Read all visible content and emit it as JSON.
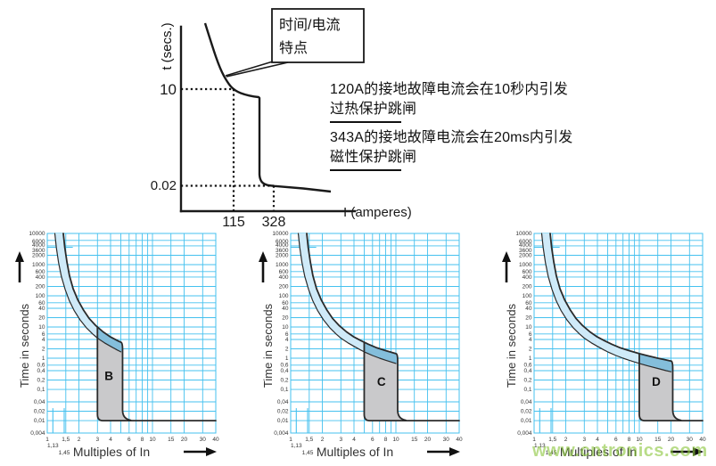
{
  "top_diagram": {
    "callout_line1": "时间/电流",
    "callout_line2": "特点",
    "y_axis_label": "t (secs.)",
    "y_tick_10": "10",
    "y_tick_002": "0.02",
    "x_tick_115": "115",
    "x_tick_328": "328",
    "x_axis_label": "I (amperes)",
    "note1_line1": "120A的接地故障电流会在10秒内引发",
    "note1_line2": "过热保护跳闸",
    "note2_line1": "343A的接地故障电流会在20ms内引发",
    "note2_line2": "磁性保护跳闸"
  },
  "watermark": "www.cntronics.com",
  "colors": {
    "grid": "#45c1ef",
    "thermal_band_fill": "#cfeaf8",
    "overlap_fill": "#84bedb",
    "magnetic_band_fill": "#c9c9cb",
    "curve_stroke": "#2b2b2b",
    "watermark_green": "#8dc63f"
  },
  "thermal_band_curves": {
    "fast_boundary_x_t": [
      [
        1.18,
        10000
      ],
      [
        1.22,
        3500
      ],
      [
        1.28,
        1200
      ],
      [
        1.36,
        420
      ],
      [
        1.48,
        160
      ],
      [
        1.62,
        70
      ],
      [
        1.8,
        34
      ],
      [
        2.05,
        17
      ],
      [
        2.35,
        9.5
      ],
      [
        2.7,
        6
      ],
      [
        3,
        4.4
      ],
      [
        3.5,
        3.1
      ],
      [
        4,
        2.4
      ],
      [
        4.6,
        1.85
      ],
      [
        5,
        1.6
      ],
      [
        6,
        1.22
      ],
      [
        7,
        1.0
      ],
      [
        8,
        0.86
      ],
      [
        10,
        0.68
      ],
      [
        12,
        0.57
      ],
      [
        15,
        0.47
      ],
      [
        18,
        0.4
      ],
      [
        20,
        0.37
      ],
      [
        22,
        0.34
      ]
    ],
    "slow_boundary_x_t": [
      [
        1.42,
        10000
      ],
      [
        1.47,
        3500
      ],
      [
        1.54,
        1200
      ],
      [
        1.63,
        430
      ],
      [
        1.76,
        170
      ],
      [
        1.95,
        75
      ],
      [
        2.2,
        36
      ],
      [
        2.5,
        19
      ],
      [
        2.9,
        11
      ],
      [
        3.4,
        7
      ],
      [
        4,
        4.8
      ],
      [
        4.7,
        3.6
      ],
      [
        5.5,
        2.8
      ],
      [
        6.5,
        2.2
      ],
      [
        8,
        1.75
      ],
      [
        10,
        1.4
      ],
      [
        12,
        1.2
      ],
      [
        15,
        1.0
      ],
      [
        18,
        0.88
      ],
      [
        22,
        0.76
      ],
      [
        26,
        0.68
      ]
    ],
    "instantaneous_trip_seconds": 0.01
  },
  "chart_common": {
    "x_gridline_values": [
      1,
      1.5,
      2,
      3,
      4,
      5,
      6,
      7,
      8,
      9,
      10,
      15,
      20,
      30,
      40
    ],
    "x_tick_values": [
      1,
      1.5,
      2,
      3,
      4,
      6,
      8,
      10,
      15,
      20,
      30,
      40
    ],
    "x_tick_labels": [
      "1",
      "1,5",
      "2",
      "3",
      "4",
      "6",
      "8",
      "10",
      "15",
      "20",
      "30",
      "40"
    ],
    "x_sub_ticks": [
      {
        "label": "1,13",
        "value": 1.13
      },
      {
        "label": "1,45",
        "value": 1.45
      }
    ],
    "y_tick_values": [
      10000,
      6000,
      4000,
      3600,
      2000,
      1000,
      600,
      400,
      200,
      100,
      60,
      40,
      20,
      10,
      6,
      4,
      2,
      1,
      0.6,
      0.4,
      0.2,
      0.1,
      0.04,
      0.02,
      0.01,
      0.004
    ],
    "y_tick_labels": [
      "10000",
      "6000",
      "4000",
      "3600",
      "2000",
      "1000",
      "600",
      "400",
      "200",
      "100",
      "60",
      "40",
      "20",
      "10",
      "6",
      "4",
      "2",
      "1",
      "0,6",
      "0,4",
      "0,2",
      "0,1",
      "0,04",
      "0,02",
      "0,01",
      "0,004"
    ],
    "partial_gridline_value": 3600,
    "partial_gridline_x_end": 1.75
  },
  "chart_data": [
    {
      "type": "area",
      "curve_label": "B",
      "magnetic_trip_range_multiples_of_in": [
        3,
        5
      ],
      "label_pos": [
        3.85,
        0.2
      ],
      "xlabel": "Multiples of In",
      "ylabel": "Time in seconds",
      "xlim": [
        1,
        40
      ],
      "ylim": [
        0.004,
        10000
      ]
    },
    {
      "type": "area",
      "curve_label": "C",
      "magnetic_trip_range_multiples_of_in": [
        5,
        10
      ],
      "label_pos": [
        7.3,
        0.13
      ],
      "xlabel": "Multiples of In",
      "ylabel": "Time in seconds",
      "xlim": [
        1,
        40
      ],
      "ylim": [
        0.004,
        10000
      ]
    },
    {
      "type": "area",
      "curve_label": "D",
      "magnetic_trip_range_multiples_of_in": [
        10,
        20
      ],
      "label_pos": [
        14.5,
        0.13
      ],
      "xlabel": "Multiples of In",
      "ylabel": "Time in seconds",
      "xlim": [
        1,
        40
      ],
      "ylim": [
        0.004,
        10000
      ]
    }
  ]
}
